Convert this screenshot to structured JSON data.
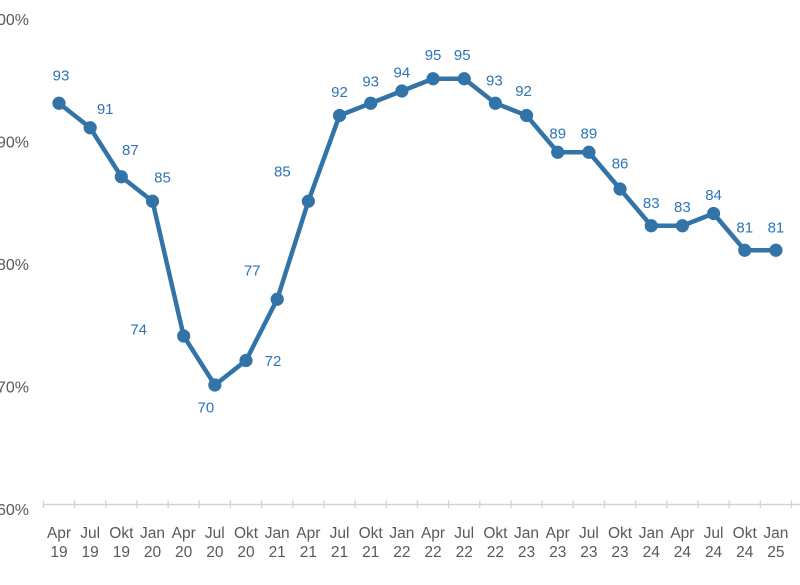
{
  "chart_data": {
    "type": "line",
    "categories": [
      "Apr 19",
      "Jul 19",
      "Okt 19",
      "Jan 20",
      "Apr 20",
      "Jul 20",
      "Okt 20",
      "Jan 21",
      "Apr 21",
      "Jul 21",
      "Okt 21",
      "Jan 22",
      "Apr 22",
      "Jul 22",
      "Okt 22",
      "Jan 23",
      "Apr 23",
      "Jul 23",
      "Okt 23",
      "Jan 24",
      "Apr 24",
      "Jul 24",
      "Okt 24",
      "Jan 25"
    ],
    "series": [
      {
        "name": "series-1",
        "values": [
          93,
          91,
          87,
          85,
          74,
          70,
          72,
          77,
          85,
          92,
          93,
          94,
          95,
          95,
          93,
          92,
          89,
          89,
          86,
          83,
          83,
          84,
          81,
          81
        ]
      }
    ],
    "data_labels_visible": true,
    "y_ticks": [
      {
        "label": "100%",
        "value": 100
      },
      {
        "label": "90%",
        "value": 90
      },
      {
        "label": "80%",
        "value": 80
      },
      {
        "label": "70%",
        "value": 70
      },
      {
        "label": "60%",
        "value": 60
      }
    ],
    "ylim": [
      60,
      100
    ],
    "grid": false,
    "legend": "none",
    "markers": true,
    "colors": {
      "series": "#3273A8",
      "data_label": "#2E74B6",
      "axis_text": "#595959",
      "axis_line": "#D2D2D2"
    }
  }
}
